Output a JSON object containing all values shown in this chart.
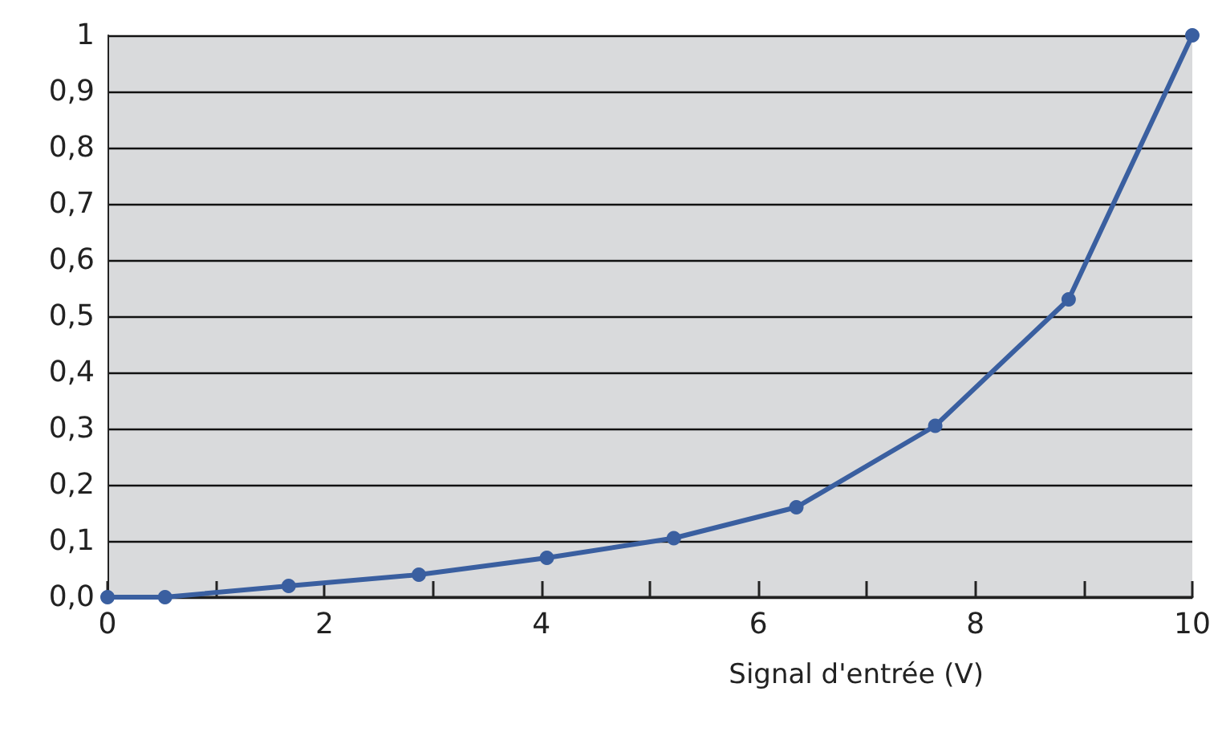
{
  "chart_data": {
    "type": "line",
    "xlabel": "Signal d'entrée (V)",
    "x": [
      0,
      0.53,
      1.67,
      2.87,
      4.05,
      5.22,
      6.35,
      7.63,
      8.86,
      10
    ],
    "series": [
      {
        "color": "#3a5fa0",
        "values": [
          0,
          0,
          0.02,
          0.04,
          0.07,
          0.105,
          0.16,
          0.305,
          0.53,
          1
        ]
      }
    ],
    "xlim": [
      0,
      10
    ],
    "xticks": [
      0,
      {
        "value": 1,
        "label": null
      },
      2,
      {
        "value": 3,
        "label": null
      },
      4,
      {
        "value": 5,
        "label": null
      },
      6,
      {
        "value": 7,
        "label": null
      },
      8,
      {
        "value": 9,
        "label": null
      },
      10
    ],
    "ylim": [
      0,
      1
    ],
    "yticks": [
      {
        "value": 0,
        "label": "0,0"
      },
      {
        "value": 0.1,
        "label": "0,1"
      },
      {
        "value": 0.2,
        "label": "0,2"
      },
      {
        "value": 0.3,
        "label": "0,3"
      },
      {
        "value": 0.4,
        "label": "0,4"
      },
      {
        "value": 0.5,
        "label": "0,5"
      },
      {
        "value": 0.6,
        "label": "0,6"
      },
      {
        "value": 0.7,
        "label": "0,7"
      },
      {
        "value": 0.8,
        "label": "0,8"
      },
      {
        "value": 0.9,
        "label": "0,9"
      },
      1
    ],
    "grid": "y",
    "marker": "circle",
    "line_style": "solid"
  }
}
